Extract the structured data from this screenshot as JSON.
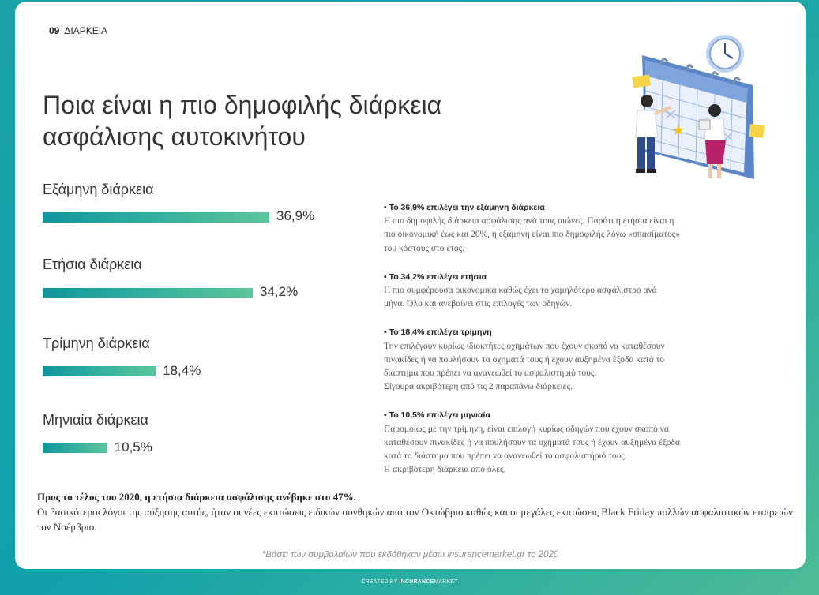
{
  "section": {
    "number": "09",
    "label": "ΔΙΑΡΚΕΙΑ"
  },
  "title_lines": [
    "Ποια είναι η πιο δημοφιλής διάρκεια",
    "ασφάλισης αυτοκινήτου"
  ],
  "colors": {
    "bar_start": "#0f959c",
    "bar_end": "#5cc59a",
    "background_start": "#1aa3a7",
    "background_end": "#4dbb96"
  },
  "chart_data": {
    "type": "bar",
    "orientation": "horizontal",
    "title": "Ποια είναι η πιο δημοφιλής διάρκεια ασφάλισης αυτοκινήτου",
    "categories": [
      "Εξάμηνη διάρκεια",
      "Ετήσια διάρκεια",
      "Τρίμηνη διάρκεια",
      "Μηνιαία διάρκεια"
    ],
    "values": [
      36.9,
      34.2,
      18.4,
      10.5
    ],
    "value_labels": [
      "36,9%",
      "34,2%",
      "18,4%",
      "10,5%"
    ],
    "unit": "%",
    "xlim": [
      0,
      36.9
    ],
    "xlabel": "",
    "ylabel": ""
  },
  "notes": [
    {
      "heading": "• Το 36,9% επιλέγει την εξάμηνη διάρκεια",
      "lines": [
        "Η πιο δημοφιλής διάρκεια ασφάλισης ανά τους αιώνες. Παρότι η ετήσια είναι η",
        "πιο οικονομική έως και 20%, η εξάμηνη είναι πιο δημοφιλής λόγω «σπασίματος»",
        "του κόστους στο έτος."
      ]
    },
    {
      "heading": "• Το 34,2% επιλέγει ετήσια",
      "lines": [
        "Η πιο συμφέρουσα οικονομικά καθώς έχει το χαμηλότερο ασφάλιστρο ανά",
        "μήνα. Όλο και ανεβαίνει στις επιλογές των οδηγών."
      ]
    },
    {
      "heading": "• Το 18,4% επιλέγει τρίμηνη",
      "lines": [
        "Την επιλέγουν κυρίως ιδιοκτήτες οχημάτων που έχουν σκοπό να καταθέσουν",
        "πινακίδες ή να πουλήσουν τα οχηματά τους ή έχουν αυξημένα έξοδα κατά το",
        "διάστημα που πρέπει να ανανεωθεί το ασφαλιστήριό τους.",
        "Σίγουρα ακριβότερη από τις 2 παραπάνω διάρκειες."
      ]
    },
    {
      "heading": "• Το 10,5% επιλέγει μηνιαία",
      "lines": [
        "Παρομοίως με την τρίμηνη, είναι επιλογή κυρίως οδηγών που έχουν σκοπό να",
        "καταθέσουν πινακίδες ή να πουλήσουν τα οχήματά τους ή έχουν αυξημένα έξοδα",
        "κατά το διάστημα που πρέπει να ανανεωθεί το ασφαλιστήριό τους.",
        "Η ακριβότερη διάρκεια από όλες."
      ]
    }
  ],
  "summary": {
    "bold": "Προς το τέλος του 2020, η ετήσια διάρκεια ασφάλισης ανέβηκε στο 47%.",
    "text": "Οι βασικότεροι λόγοι της αύξησης αυτής, ήταν οι νέες εκπτώσεις ειδικών συνθηκών από τον Οκτώβριο καθώς και οι μεγάλες εκπτώσεις Black Friday πολλών ασφαλιστικών εταιρειών τον Νοέμβριο."
  },
  "footnote": "*Βάσει των συμβολαίων που εκδόθηκαν μέσω insurancemarket.gr το 2020",
  "credit": {
    "prefix": "CREATED BY",
    "brand_bold": "INCURANCE",
    "brand_rest": "MARKET"
  },
  "illustration": {
    "icon": "calendar-clock-people-illustration"
  }
}
